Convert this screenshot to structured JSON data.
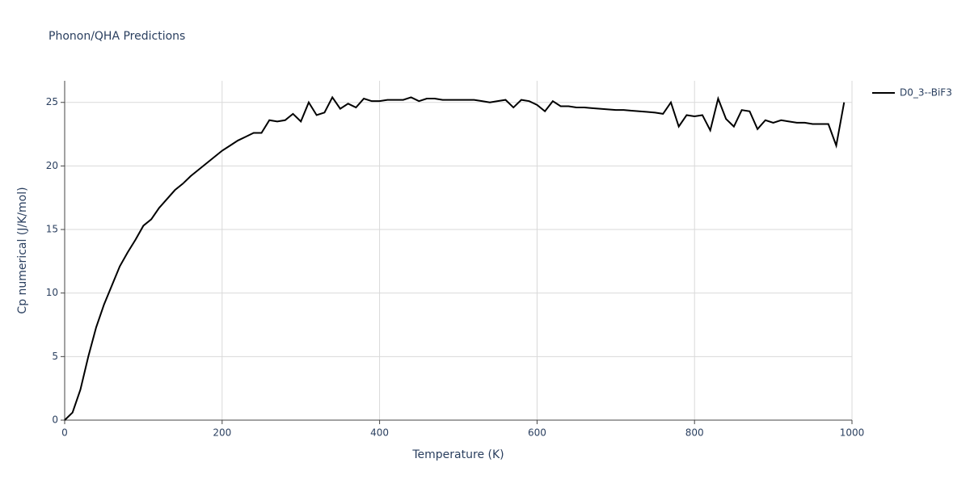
{
  "chart_data": {
    "type": "line",
    "title": "Phonon/QHA Predictions",
    "x_label": "Temperature (K)",
    "y_label": "Cp numerical (J/K/mol)",
    "x": [
      0,
      10,
      20,
      30,
      40,
      50,
      60,
      70,
      80,
      90,
      100,
      110,
      120,
      130,
      140,
      150,
      160,
      170,
      180,
      190,
      200,
      210,
      220,
      230,
      240,
      250,
      260,
      270,
      280,
      290,
      300,
      310,
      320,
      330,
      340,
      350,
      360,
      370,
      380,
      390,
      400,
      410,
      420,
      430,
      440,
      450,
      460,
      470,
      480,
      490,
      500,
      510,
      520,
      530,
      540,
      550,
      560,
      570,
      580,
      590,
      600,
      610,
      620,
      630,
      640,
      650,
      660,
      670,
      680,
      690,
      700,
      710,
      720,
      730,
      740,
      750,
      760,
      770,
      780,
      790,
      800,
      810,
      820,
      830,
      840,
      850,
      860,
      870,
      880,
      890,
      900,
      910,
      920,
      930,
      940,
      950,
      960,
      970,
      980,
      990
    ],
    "series": [
      {
        "name": "D0_3--BiF3",
        "color": "#000000",
        "values": [
          0,
          0.6,
          2.4,
          5.0,
          7.3,
          9.1,
          10.6,
          12.1,
          13.2,
          14.2,
          15.3,
          15.8,
          16.7,
          17.4,
          18.1,
          18.6,
          19.2,
          19.7,
          20.2,
          20.7,
          21.2,
          21.6,
          22.0,
          22.3,
          22.6,
          22.6,
          23.6,
          23.5,
          23.6,
          24.1,
          23.5,
          25.0,
          24.0,
          24.2,
          25.4,
          24.5,
          24.9,
          24.6,
          25.3,
          25.1,
          25.1,
          25.2,
          25.2,
          25.2,
          25.4,
          25.1,
          25.3,
          25.3,
          25.2,
          25.2,
          25.2,
          25.2,
          25.2,
          25.1,
          25.0,
          25.1,
          25.2,
          24.6,
          25.2,
          25.1,
          24.8,
          24.3,
          25.1,
          24.7,
          24.7,
          24.6,
          24.6,
          24.55,
          24.5,
          24.45,
          24.4,
          24.4,
          24.35,
          24.3,
          24.25,
          24.2,
          24.1,
          25.0,
          23.1,
          24.0,
          23.9,
          24.0,
          22.8,
          25.3,
          23.7,
          23.1,
          24.4,
          24.3,
          22.9,
          23.6,
          23.4,
          23.6,
          23.5,
          23.4,
          23.4,
          23.3,
          23.3,
          23.3,
          21.6,
          25.0
        ]
      }
    ],
    "xlim": [
      0,
      1000
    ],
    "xticks": [
      0,
      200,
      400,
      600,
      800,
      1000
    ],
    "ylim": [
      0,
      26.7
    ],
    "yticks": [
      0,
      5,
      10,
      15,
      20,
      25
    ],
    "grid": true,
    "legend": "right"
  }
}
